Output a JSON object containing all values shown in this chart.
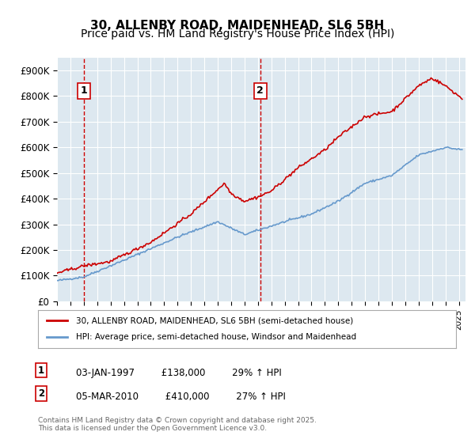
{
  "title": "30, ALLENBY ROAD, MAIDENHEAD, SL6 5BH",
  "subtitle": "Price paid vs. HM Land Registry's House Price Index (HPI)",
  "xlabel": "",
  "ylabel": "",
  "ylim": [
    0,
    950000
  ],
  "yticks": [
    0,
    100000,
    200000,
    300000,
    400000,
    500000,
    600000,
    700000,
    800000,
    900000
  ],
  "ytick_labels": [
    "£0",
    "£100K",
    "£200K",
    "£300K",
    "£400K",
    "£500K",
    "£600K",
    "£700K",
    "£800K",
    "£900K"
  ],
  "xlim_start": 1995.0,
  "xlim_end": 2025.5,
  "background_color": "#dde8f0",
  "plot_bg_color": "#dde8f0",
  "line1_color": "#cc0000",
  "line2_color": "#6699cc",
  "vline_color": "#cc0000",
  "marker1_x": 1997.03,
  "marker2_x": 2010.18,
  "marker1_label": "1",
  "marker2_label": "2",
  "legend1": "30, ALLENBY ROAD, MAIDENHEAD, SL6 5BH (semi-detached house)",
  "legend2": "HPI: Average price, semi-detached house, Windsor and Maidenhead",
  "footnote1": "1    03-JAN-1997         £138,000         29% ↑ HPI",
  "footnote2": "2    05-MAR-2010         £410,000         27% ↑ HPI",
  "copyright": "Contains HM Land Registry data © Crown copyright and database right 2025.\nThis data is licensed under the Open Government Licence v3.0.",
  "title_fontsize": 11,
  "subtitle_fontsize": 10
}
